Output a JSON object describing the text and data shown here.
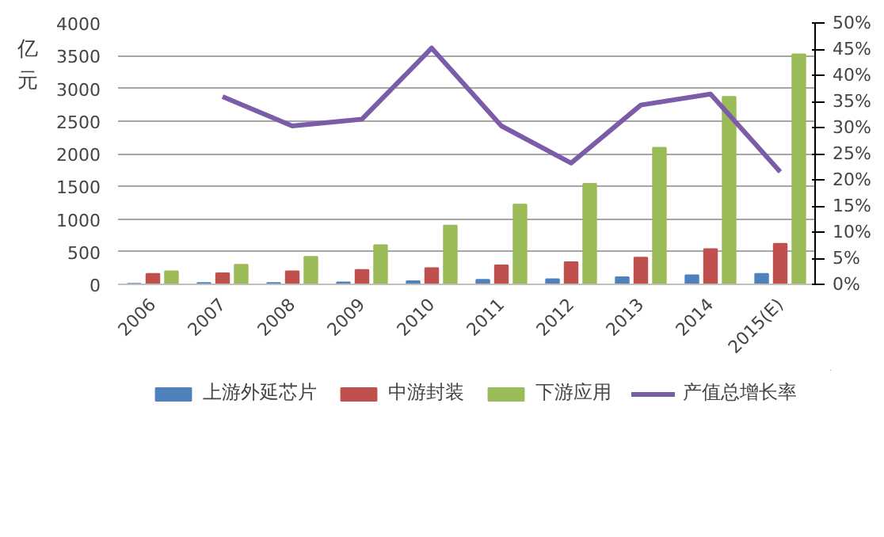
{
  "chart_data": {
    "type": "bar",
    "ylabel": "亿元",
    "categories": [
      "2006",
      "2007",
      "2008",
      "2009",
      "2010",
      "2011",
      "2012",
      "2013",
      "2014",
      "2015(E)"
    ],
    "series": [
      {
        "name": "上游外延芯片",
        "color": "#4f81bd",
        "values": [
          10,
          20,
          20,
          30,
          50,
          70,
          80,
          110,
          140,
          160
        ]
      },
      {
        "name": "中游封装",
        "color": "#c0504d",
        "values": [
          160,
          170,
          200,
          220,
          250,
          290,
          340,
          410,
          540,
          620
        ]
      },
      {
        "name": "下游应用",
        "color": "#9bbb59",
        "values": [
          200,
          300,
          420,
          600,
          900,
          1220,
          1540,
          2090,
          2870,
          3520
        ]
      },
      {
        "name": "产值总增长率",
        "color": "#7b5ca8",
        "type": "line",
        "axis": "y2",
        "values": [
          null,
          35.9,
          30.3,
          31.6,
          45.2,
          30.3,
          23.2,
          34.3,
          36.4,
          21.5
        ]
      }
    ],
    "ylim": [
      0,
      4000
    ],
    "yticks": [
      0,
      500,
      1000,
      1500,
      2000,
      2500,
      3000,
      3500,
      4000
    ],
    "y2lim": [
      0,
      50
    ],
    "y2ticks": [
      {
        "value": 0,
        "label": "0%"
      },
      {
        "value": 5,
        "label": "5%"
      },
      {
        "value": 10,
        "label": "10%"
      },
      {
        "value": 15,
        "label": "15%"
      },
      {
        "value": 20,
        "label": "20%"
      },
      {
        "value": 25,
        "label": "25%"
      },
      {
        "value": 30,
        "label": "30%"
      },
      {
        "value": 35,
        "label": "35%"
      },
      {
        "value": 40,
        "label": "40%"
      },
      {
        "value": 45,
        "label": "45%"
      },
      {
        "value": 50,
        "label": "50%"
      }
    ],
    "grid": "y",
    "legend": "bottom"
  }
}
